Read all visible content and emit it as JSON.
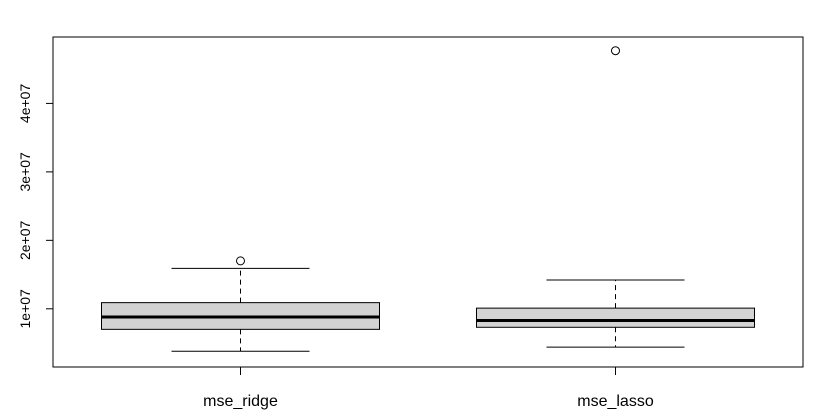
{
  "chart_data": {
    "type": "boxplot",
    "title": "",
    "xlabel": "",
    "ylabel": "",
    "ylim": [
      1500000,
      49700000
    ],
    "y_ticks": [
      10000000,
      20000000,
      30000000,
      40000000
    ],
    "y_tick_labels": [
      "1e+07",
      "2e+07",
      "3e+07",
      "4e+07"
    ],
    "categories": [
      "mse_ridge",
      "mse_lasso"
    ],
    "boxes": [
      {
        "name": "mse_ridge",
        "whisker_low": 3800000,
        "q1": 7000000,
        "median": 8800000,
        "q3": 10900000,
        "whisker_high": 15900000,
        "outliers": [
          17000000
        ]
      },
      {
        "name": "mse_lasso",
        "whisker_low": 4400000,
        "q1": 7300000,
        "median": 8300000,
        "q3": 10100000,
        "whisker_high": 14200000,
        "outliers": [
          47700000
        ]
      }
    ],
    "grid": false,
    "legend": "none",
    "colors": {
      "box_fill": "#d3d3d3",
      "stroke": "#000000"
    }
  }
}
